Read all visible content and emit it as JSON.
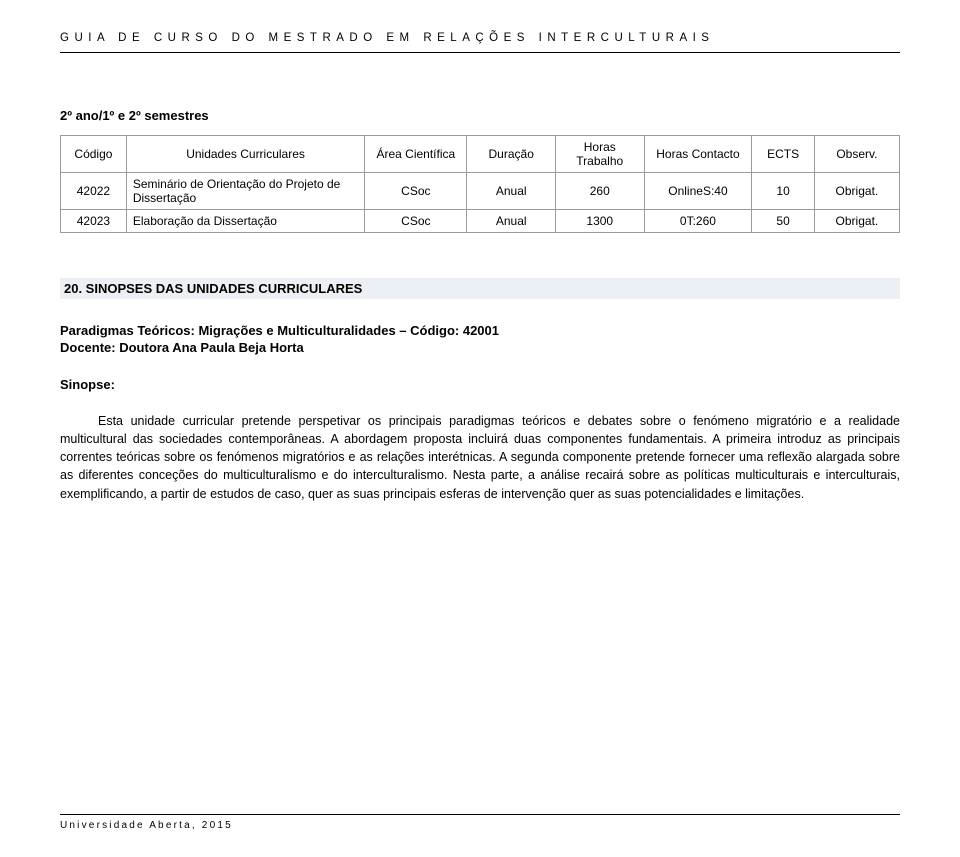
{
  "header": {
    "title": "GUIA DE CURSO DO MESTRADO EM RELAÇÕES INTERCULTURAIS"
  },
  "semesters_label": "2º ano/1º e 2º semestres",
  "table": {
    "headers": {
      "codigo": "Código",
      "uc": "Unidades Curriculares",
      "area": "Área Científica",
      "duracao": "Duração",
      "horas_trabalho": "Horas Trabalho",
      "horas_contacto": "Horas Contacto",
      "ects": "ECTS",
      "observ": "Observ."
    },
    "rows": [
      {
        "codigo": "42022",
        "uc": "Seminário de Orientação do Projeto de Dissertação",
        "area": "CSoc",
        "duracao": "Anual",
        "ht": "260",
        "hc": "OnlineS:40",
        "ects": "10",
        "obs": "Obrigat."
      },
      {
        "codigo": "42023",
        "uc": "Elaboração da Dissertação",
        "area": "CSoc",
        "duracao": "Anual",
        "ht": "1300",
        "hc": "0T:260",
        "ects": "50",
        "obs": "Obrigat."
      }
    ]
  },
  "section20": {
    "title": "20. SINOPSES DAS UNIDADES CURRICULARES",
    "heading_line1": "Paradigmas Teóricos: Migrações e Multiculturalidades – Código: 42001",
    "heading_line2": "Docente: Doutora Ana Paula Beja Horta",
    "sinopse_label": "Sinopse:",
    "body": "Esta unidade curricular pretende perspetivar os principais paradigmas teóricos e debates sobre o fenómeno migratório e a realidade multicultural das sociedades contemporâneas. A abordagem proposta incluirá duas componentes fundamentais. A primeira introduz as principais correntes teóricas sobre os fenómenos migratórios e as relações interétnicas. A segunda componente pretende fornecer uma reflexão alargada sobre as diferentes conceções do multiculturalismo e do interculturalismo. Nesta parte, a análise recairá sobre as políticas multiculturais e interculturais, exemplificando, a partir de estudos de caso, quer as suas principais esferas de intervenção quer as suas potencialidades e limitações."
  },
  "footer": {
    "text": "Universidade Aberta, 2015"
  }
}
